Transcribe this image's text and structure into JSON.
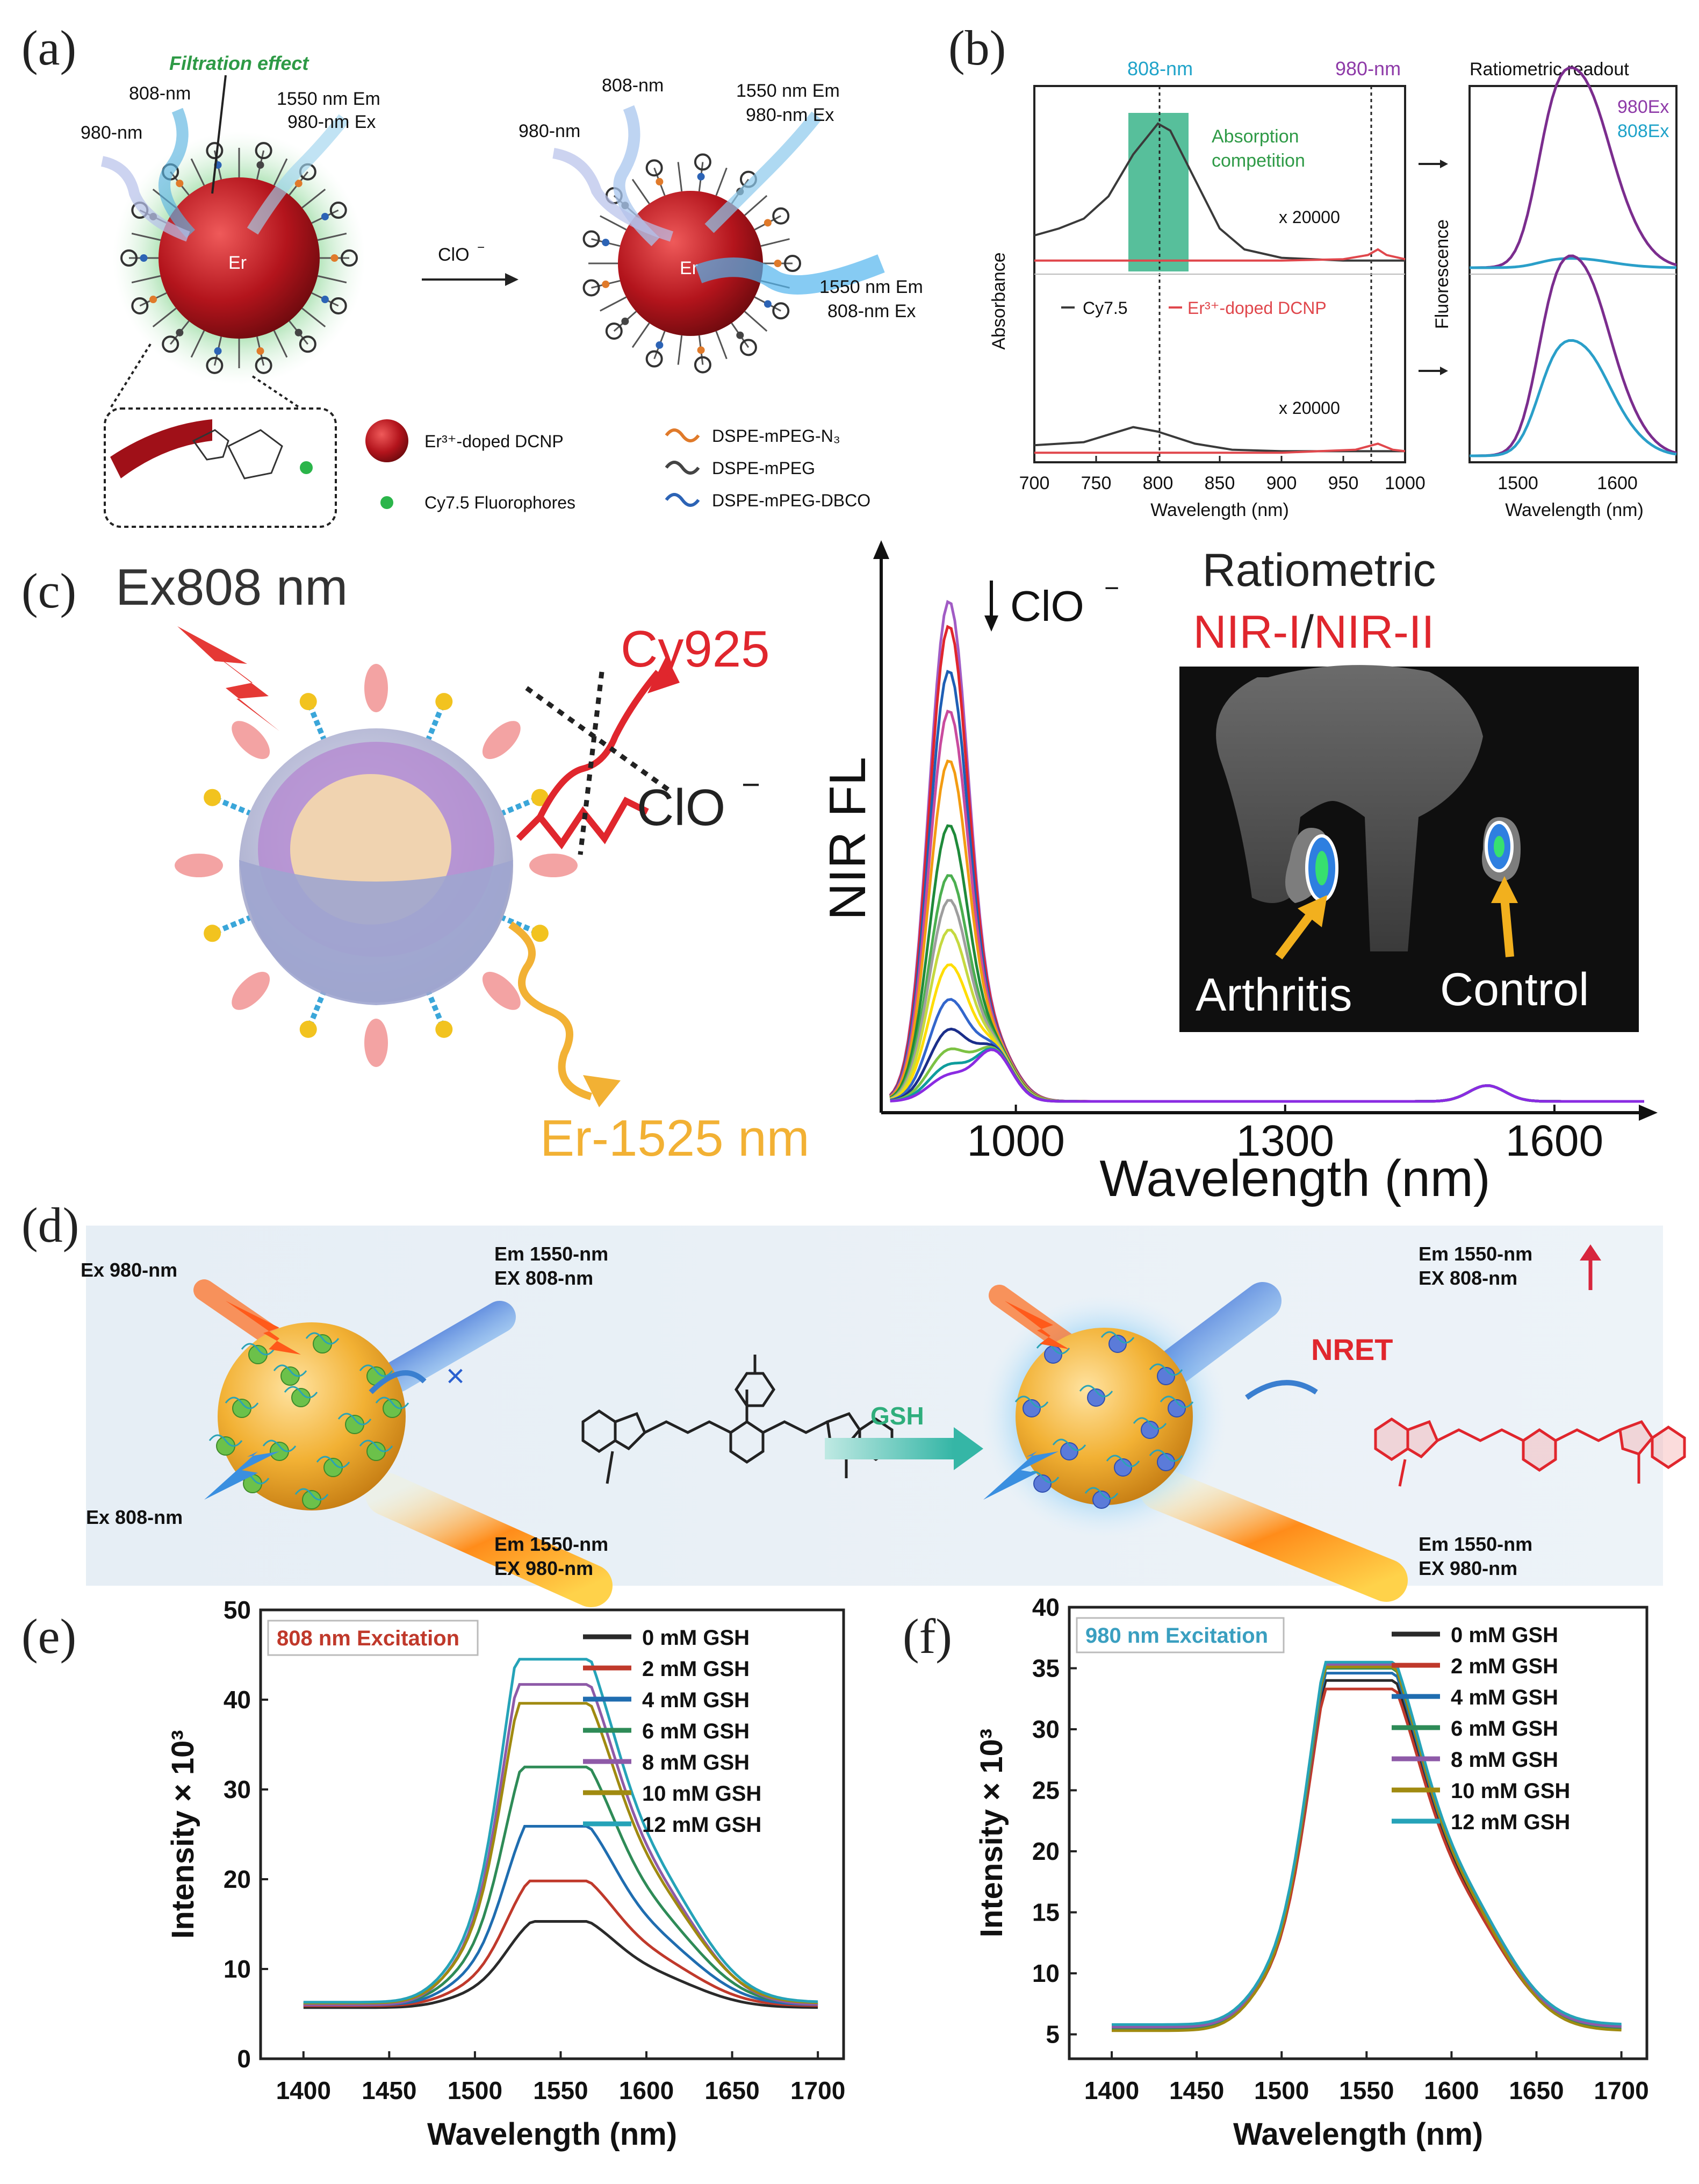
{
  "colors": {
    "cy75": "#3a3a3a",
    "er": "#e0474c",
    "purple": "#7b2d8e",
    "teal": "#2a9fc9",
    "green_band": "#3ab48a",
    "c_red": "#d7263d",
    "c_orange": "#f39c12",
    "sphere_red": "#b3141c",
    "gold": "#f2b134"
  },
  "panel_a": {
    "letter": "(a)",
    "filtration": "Filtration effect",
    "l808": "808-nm",
    "l980": "980-nm",
    "em1": "1550 nm Em",
    "ex1": "980-nm Ex",
    "r808": "808-nm",
    "r980": "980-nm",
    "rem1": "1550 nm Em",
    "rex1": "980-nm Ex",
    "rem2": "1550 nm Em",
    "rex2": "808-nm Ex",
    "core": "Er",
    "clo": "ClO",
    "legend": [
      "Er³⁺-doped DCNP",
      "Cy7.5 Fluorophores",
      "DSPE-mPEG-N₃",
      "DSPE-mPEG",
      "DSPE-mPEG-DBCO"
    ]
  },
  "panel_b": {
    "letter": "(b)",
    "l808": "808-nm",
    "l980": "980-nm",
    "absorb": [
      "Absorption",
      "competition"
    ],
    "x20000": "x 20000",
    "legend_cy": "Cy7.5",
    "legend_er": "Er³⁺-doped DCNP",
    "ylabel": "Absorbance",
    "xlabel": "Wavelength (nm)",
    "ratio_title": "Ratiometric readout",
    "ex980": "980Ex",
    "ex808": "808Ex",
    "ylabel2": "Fluorescence",
    "xlabel2": "Wavelength (nm)"
  },
  "panel_c": {
    "letter": "(c)",
    "ex": "Ex808 nm",
    "cy925": "Cy925",
    "clo": "ClO",
    "er": "Er-1525 nm",
    "ylabel": "NIR FL",
    "xlabel": "Wavelength (nm)",
    "arrow_label": "ClO",
    "ratio": "Ratiometric",
    "nir1": "NIR-I",
    "slash": "/",
    "nir2": "NIR-II",
    "arthritis": "Arthritis",
    "control": "Control"
  },
  "panel_d": {
    "letter": "(d)",
    "ex980": "Ex 980-nm",
    "ex808": "Ex 808-nm",
    "em1": "Em 1550-nm",
    "ex1": "EX  808-nm",
    "em2": "Em 1550-nm",
    "ex2": "EX  980-nm",
    "gsh": "GSH",
    "nret": "NRET",
    "rem1": "Em 1550-nm",
    "rex1": "EX  808-nm",
    "rem2": "Em 1550-nm",
    "rex2": "EX  980-nm"
  },
  "panel_e": {
    "letter": "(e)"
  },
  "panel_f": {
    "letter": "(f)"
  },
  "chart_data": [
    {
      "id": "b_absorbance_top",
      "type": "line",
      "xlabel": "Wavelength (nm)",
      "ylabel": "Absorbance",
      "xlim": [
        700,
        1000
      ],
      "series": [
        {
          "name": "Cy7.5",
          "x": [
            700,
            720,
            740,
            760,
            780,
            800,
            810,
            830,
            850,
            870,
            900,
            950,
            1000
          ],
          "values": [
            0.2,
            0.25,
            0.32,
            0.48,
            0.78,
            1.0,
            0.95,
            0.6,
            0.25,
            0.1,
            0.04,
            0.02,
            0.02
          ]
        },
        {
          "name": "Er³⁺-doped DCNP",
          "x": [
            700,
            800,
            900,
            950,
            970,
            978,
            985,
            1000
          ],
          "values": [
            0.02,
            0.02,
            0.02,
            0.03,
            0.06,
            0.1,
            0.06,
            0.03
          ]
        }
      ]
    },
    {
      "id": "b_absorbance_bottom",
      "type": "line",
      "xlim": [
        700,
        1000
      ],
      "series": [
        {
          "name": "Cy7.5",
          "x": [
            700,
            740,
            760,
            780,
            800,
            830,
            860,
            900,
            1000
          ],
          "values": [
            0.06,
            0.08,
            0.13,
            0.18,
            0.15,
            0.07,
            0.03,
            0.02,
            0.02
          ]
        },
        {
          "name": "Er³⁺-doped DCNP",
          "x": [
            700,
            800,
            900,
            960,
            978,
            990,
            1000
          ],
          "values": [
            0.01,
            0.01,
            0.01,
            0.03,
            0.07,
            0.03,
            0.02
          ]
        }
      ]
    },
    {
      "id": "b_ratiometric",
      "type": "line",
      "xlabel": "Wavelength (nm)",
      "ylabel": "Fluorescence",
      "xlim": [
        1450,
        1650
      ],
      "categories": [
        "1500",
        "1600"
      ],
      "series": [
        {
          "name": "980Ex"
        },
        {
          "name": "808Ex"
        }
      ]
    },
    {
      "id": "c_nir_fl",
      "type": "line",
      "xlabel": "Wavelength (nm)",
      "ylabel": "NIR FL",
      "xlim": [
        850,
        1700
      ],
      "xticks": [
        1000,
        1300,
        1600
      ],
      "peak_heights": [
        1.0,
        0.95,
        0.86,
        0.78,
        0.68,
        0.55,
        0.45,
        0.4,
        0.34,
        0.27,
        0.2,
        0.14,
        0.1,
        0.07,
        0.05
      ]
    },
    {
      "id": "e_808",
      "type": "line",
      "title": "808 nm Excitation",
      "xlabel": "Wavelength (nm)",
      "ylabel": "Intensity × 10³",
      "xlim": [
        1375,
        1715
      ],
      "ylim": [
        0,
        50
      ],
      "xticks": [
        1400,
        1450,
        1500,
        1550,
        1600,
        1650,
        1700
      ],
      "yticks": [
        0,
        10,
        20,
        30,
        40,
        50
      ],
      "series": [
        {
          "name": "0 mM GSH",
          "color": "#2a2a2a",
          "peak": 15.3,
          "base": 5.7
        },
        {
          "name": "2 mM GSH",
          "color": "#c0392b",
          "peak": 19.8,
          "base": 5.9
        },
        {
          "name": "4 mM GSH",
          "color": "#1f6db0",
          "peak": 25.9,
          "base": 6.0
        },
        {
          "name": "6 mM GSH",
          "color": "#2e8b57",
          "peak": 32.5,
          "base": 6.1
        },
        {
          "name": "8 mM GSH",
          "color": "#8e5aa8",
          "peak": 41.7,
          "base": 6.0
        },
        {
          "name": "10 mM GSH",
          "color": "#a08a10",
          "peak": 39.6,
          "base": 6.2
        },
        {
          "name": "12 mM GSH",
          "color": "#25a3b8",
          "peak": 44.5,
          "base": 6.3
        }
      ]
    },
    {
      "id": "f_980",
      "type": "line",
      "title": "980 nm Excitation",
      "xlabel": "Wavelength (nm)",
      "ylabel": "Intensity × 10³",
      "xlim": [
        1375,
        1715
      ],
      "ylim": [
        3,
        40
      ],
      "xticks": [
        1400,
        1450,
        1500,
        1550,
        1600,
        1650,
        1700
      ],
      "yticks": [
        5,
        10,
        15,
        20,
        25,
        30,
        35,
        40
      ],
      "series": [
        {
          "name": "0 mM GSH",
          "color": "#2a2a2a",
          "peak": 34.0,
          "base": 5.6
        },
        {
          "name": "2 mM GSH",
          "color": "#c0392b",
          "peak": 33.3,
          "base": 5.5
        },
        {
          "name": "4 mM GSH",
          "color": "#1f6db0",
          "peak": 34.6,
          "base": 5.7
        },
        {
          "name": "6 mM GSH",
          "color": "#2e8b57",
          "peak": 35.0,
          "base": 5.4
        },
        {
          "name": "8 mM GSH",
          "color": "#8e5aa8",
          "peak": 35.3,
          "base": 5.6
        },
        {
          "name": "10 mM GSH",
          "color": "#a08a10",
          "peak": 35.1,
          "base": 5.3
        },
        {
          "name": "12 mM GSH",
          "color": "#25a3b8",
          "peak": 35.5,
          "base": 5.8
        }
      ]
    }
  ]
}
